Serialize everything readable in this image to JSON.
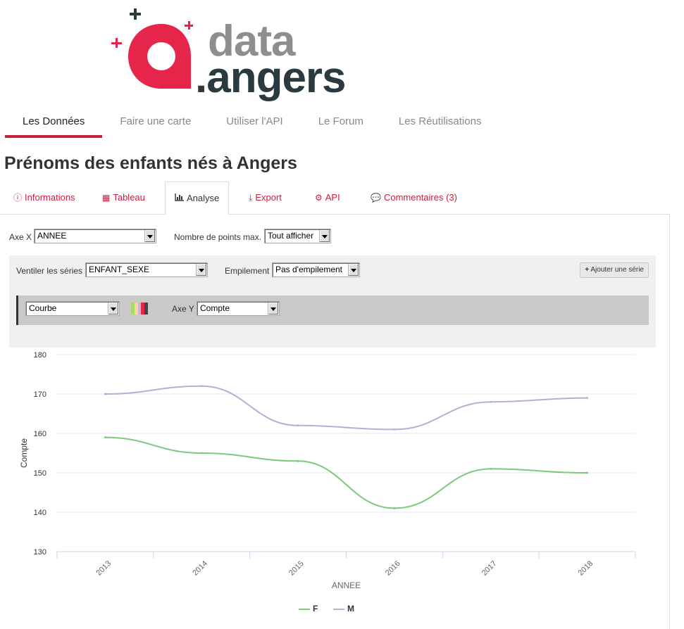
{
  "logo": {
    "word_data": "data",
    "word_angers": ".angers",
    "colors": {
      "red": "#e5254a",
      "gray": "#8e8e8e",
      "dark": "#2b3a40"
    }
  },
  "main_nav": [
    {
      "label": "Les Données",
      "active": true
    },
    {
      "label": "Faire une carte",
      "active": false
    },
    {
      "label": "Utiliser l'API",
      "active": false
    },
    {
      "label": "Le Forum",
      "active": false
    },
    {
      "label": "Les Réutilisations",
      "active": false
    }
  ],
  "page_title": "Prénoms des enfants nés à Angers",
  "tabs": [
    {
      "label": "Informations",
      "icon": "info-circle-icon",
      "active": false
    },
    {
      "label": "Tableau",
      "icon": "table-icon",
      "active": false
    },
    {
      "label": "Analyse",
      "icon": "bar-chart-icon",
      "active": true
    },
    {
      "label": "Export",
      "icon": "download-icon",
      "active": false
    },
    {
      "label": "API",
      "icon": "cogs-icon",
      "active": false
    },
    {
      "label": "Commentaires (3)",
      "icon": "comments-icon",
      "active": false
    }
  ],
  "controls": {
    "axe_x_label": "Axe X",
    "axe_x_value": "ANNEE",
    "max_points_label": "Nombre de points max.",
    "max_points_value": "Tout afficher",
    "ventiler_label": "Ventiler les séries",
    "ventiler_value": "ENFANT_SEXE",
    "empilement_label": "Empilement",
    "empilement_value": "Pas d'empilement",
    "add_series_label": "Ajouter une série",
    "chart_type_value": "Courbe",
    "axe_y_label": "Axe Y",
    "axe_y_value": "Compte",
    "palette_colors": [
      "#a6d96a",
      "#fdd49e",
      "#c3b5d8",
      "#e5254a",
      "#444444"
    ]
  },
  "chart_data": {
    "type": "line",
    "xlabel": "ANNEE",
    "ylabel": "Compte",
    "categories": [
      "2013",
      "2014",
      "2015",
      "2016",
      "2017",
      "2018"
    ],
    "ylim": [
      130,
      180
    ],
    "yticks": [
      130,
      140,
      150,
      160,
      170,
      180
    ],
    "grid": true,
    "legend_position": "bottom-center",
    "series": [
      {
        "name": "F",
        "color": "#7dc87d",
        "values": [
          159,
          155,
          153,
          141,
          151,
          150
        ]
      },
      {
        "name": "M",
        "color": "#b8aed4",
        "values": [
          170,
          172,
          162,
          161,
          168,
          169
        ]
      }
    ]
  }
}
